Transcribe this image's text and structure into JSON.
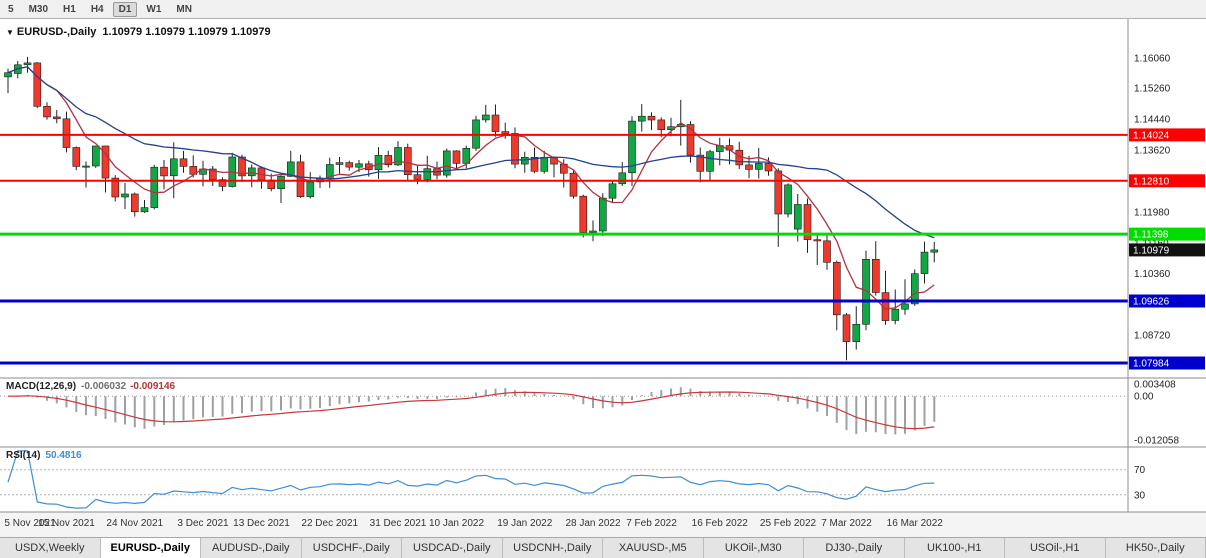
{
  "toolbar": {
    "timeframes": [
      "5",
      "M30",
      "H1",
      "H4",
      "D1",
      "W1",
      "MN"
    ],
    "active": "D1"
  },
  "chart": {
    "title": {
      "symbol": "EURUSD-,Daily",
      "quotes": "1.10979 1.10979 1.10979 1.10979"
    },
    "colors": {
      "up": "#0fa843",
      "down": "#ee3a2c",
      "wick": "#222222",
      "background": "#ffffff"
    }
  },
  "chart_data": {
    "type": "candlestick",
    "symbol": "EURUSD-",
    "timeframe": "Daily",
    "price_axis": {
      "max": 1.16854,
      "min": 1.07641,
      "ticks": [
        "1.16060",
        "1.15260",
        "1.14440",
        "1.13620",
        "1.11980",
        "1.11160",
        "1.10360",
        "1.08720"
      ]
    },
    "x_ticks": [
      {
        "label": "5 Nov 2021",
        "i": 0
      },
      {
        "label": "15 Nov 2021",
        "i": 6
      },
      {
        "label": "24 Nov 2021",
        "i": 13
      },
      {
        "label": "3 Dec 2021",
        "i": 20
      },
      {
        "label": "13 Dec 2021",
        "i": 26
      },
      {
        "label": "22 Dec 2021",
        "i": 33
      },
      {
        "label": "31 Dec 2021",
        "i": 40
      },
      {
        "label": "10 Jan 2022",
        "i": 46
      },
      {
        "label": "19 Jan 2022",
        "i": 53
      },
      {
        "label": "28 Jan 2022",
        "i": 60
      },
      {
        "label": "7 Feb 2022",
        "i": 66
      },
      {
        "label": "16 Feb 2022",
        "i": 73
      },
      {
        "label": "25 Feb 2022",
        "i": 80
      },
      {
        "label": "7 Mar 2022",
        "i": 86
      },
      {
        "label": "16 Mar 2022",
        "i": 93
      }
    ],
    "candles": [
      [
        1.1556,
        1.1578,
        1.1513,
        1.1567
      ],
      [
        1.1565,
        1.1598,
        1.1552,
        1.1588
      ],
      [
        1.1588,
        1.1609,
        1.1567,
        1.1593
      ],
      [
        1.1593,
        1.1595,
        1.1473,
        1.1478
      ],
      [
        1.1478,
        1.1489,
        1.1443,
        1.145
      ],
      [
        1.145,
        1.1468,
        1.1433,
        1.1445
      ],
      [
        1.1445,
        1.1464,
        1.1356,
        1.1369
      ],
      [
        1.1369,
        1.1372,
        1.1309,
        1.1319
      ],
      [
        1.1319,
        1.1332,
        1.1263,
        1.132
      ],
      [
        1.132,
        1.1374,
        1.1315,
        1.1373
      ],
      [
        1.1373,
        1.1374,
        1.125,
        1.1288
      ],
      [
        1.1288,
        1.1296,
        1.1226,
        1.1238
      ],
      [
        1.1238,
        1.1275,
        1.1206,
        1.1246
      ],
      [
        1.1246,
        1.125,
        1.1186,
        1.1199
      ],
      [
        1.1199,
        1.123,
        1.1196,
        1.121
      ],
      [
        1.121,
        1.1323,
        1.1205,
        1.1317
      ],
      [
        1.1317,
        1.1336,
        1.1258,
        1.1294
      ],
      [
        1.1294,
        1.1383,
        1.1235,
        1.1339
      ],
      [
        1.1339,
        1.136,
        1.1302,
        1.1319
      ],
      [
        1.1319,
        1.1348,
        1.129,
        1.1298
      ],
      [
        1.1298,
        1.1334,
        1.1266,
        1.1312
      ],
      [
        1.1312,
        1.132,
        1.1267,
        1.1284
      ],
      [
        1.1284,
        1.129,
        1.1253,
        1.1266
      ],
      [
        1.1266,
        1.1355,
        1.1263,
        1.1344
      ],
      [
        1.1344,
        1.135,
        1.1278,
        1.1294
      ],
      [
        1.1294,
        1.1324,
        1.1264,
        1.1315
      ],
      [
        1.1315,
        1.1319,
        1.126,
        1.1283
      ],
      [
        1.1283,
        1.13,
        1.1253,
        1.126
      ],
      [
        1.126,
        1.1296,
        1.1222,
        1.1293
      ],
      [
        1.1293,
        1.136,
        1.1291,
        1.1331
      ],
      [
        1.1331,
        1.135,
        1.1236,
        1.1239
      ],
      [
        1.1239,
        1.1304,
        1.1234,
        1.1278
      ],
      [
        1.1278,
        1.1295,
        1.1262,
        1.1287
      ],
      [
        1.1287,
        1.1342,
        1.1262,
        1.1324
      ],
      [
        1.1324,
        1.1344,
        1.13,
        1.1329
      ],
      [
        1.1329,
        1.1334,
        1.1308,
        1.1317
      ],
      [
        1.1317,
        1.1336,
        1.1304,
        1.1326
      ],
      [
        1.1326,
        1.1334,
        1.1292,
        1.131
      ],
      [
        1.131,
        1.137,
        1.1286,
        1.1348
      ],
      [
        1.1348,
        1.136,
        1.1316,
        1.1323
      ],
      [
        1.1323,
        1.1386,
        1.132,
        1.1369
      ],
      [
        1.1369,
        1.1379,
        1.1279,
        1.1297
      ],
      [
        1.1297,
        1.1323,
        1.1272,
        1.1285
      ],
      [
        1.1285,
        1.1347,
        1.1277,
        1.1313
      ],
      [
        1.1313,
        1.1332,
        1.1285,
        1.1296
      ],
      [
        1.1296,
        1.1366,
        1.1289,
        1.136
      ],
      [
        1.136,
        1.1362,
        1.1313,
        1.1327
      ],
      [
        1.1327,
        1.1374,
        1.1314,
        1.1367
      ],
      [
        1.1367,
        1.1453,
        1.136,
        1.1442
      ],
      [
        1.1442,
        1.1482,
        1.1435,
        1.1455
      ],
      [
        1.1455,
        1.1483,
        1.1398,
        1.1411
      ],
      [
        1.1411,
        1.1435,
        1.1392,
        1.1406
      ],
      [
        1.1406,
        1.1422,
        1.1314,
        1.1325
      ],
      [
        1.1325,
        1.1358,
        1.1302,
        1.1343
      ],
      [
        1.1343,
        1.1369,
        1.1301,
        1.1306
      ],
      [
        1.1306,
        1.136,
        1.13,
        1.1343
      ],
      [
        1.1343,
        1.1344,
        1.129,
        1.1325
      ],
      [
        1.1325,
        1.1338,
        1.1263,
        1.1301
      ],
      [
        1.1301,
        1.131,
        1.1234,
        1.124
      ],
      [
        1.124,
        1.1244,
        1.1131,
        1.1144
      ],
      [
        1.1144,
        1.1176,
        1.1121,
        1.1148
      ],
      [
        1.1148,
        1.1248,
        1.1135,
        1.1235
      ],
      [
        1.1235,
        1.128,
        1.1222,
        1.1273
      ],
      [
        1.1273,
        1.1331,
        1.1267,
        1.1302
      ],
      [
        1.1302,
        1.1452,
        1.1267,
        1.1439
      ],
      [
        1.1439,
        1.1484,
        1.1411,
        1.1452
      ],
      [
        1.1452,
        1.1462,
        1.1415,
        1.1442
      ],
      [
        1.1442,
        1.1449,
        1.1396,
        1.1416
      ],
      [
        1.1416,
        1.1448,
        1.1399,
        1.1424
      ],
      [
        1.1424,
        1.1495,
        1.1374,
        1.143
      ],
      [
        1.143,
        1.1439,
        1.1329,
        1.1349
      ],
      [
        1.1349,
        1.1369,
        1.1277,
        1.1306
      ],
      [
        1.1306,
        1.1363,
        1.128,
        1.1358
      ],
      [
        1.1358,
        1.1395,
        1.1322,
        1.1374
      ],
      [
        1.1374,
        1.1393,
        1.1324,
        1.1362
      ],
      [
        1.1362,
        1.1384,
        1.1312,
        1.1323
      ],
      [
        1.1323,
        1.1347,
        1.1288,
        1.1311
      ],
      [
        1.1311,
        1.1368,
        1.1287,
        1.1327
      ],
      [
        1.1327,
        1.1343,
        1.1294,
        1.1307
      ],
      [
        1.1307,
        1.1314,
        1.1106,
        1.1193
      ],
      [
        1.1193,
        1.1274,
        1.1184,
        1.127
      ],
      [
        1.1153,
        1.1246,
        1.112,
        1.1218
      ],
      [
        1.1218,
        1.1234,
        1.109,
        1.1125
      ],
      [
        1.1125,
        1.1139,
        1.1058,
        1.1122
      ],
      [
        1.1122,
        1.1143,
        1.1045,
        1.1065
      ],
      [
        1.1065,
        1.107,
        1.0885,
        1.0926
      ],
      [
        1.0926,
        1.0931,
        1.0806,
        1.0855
      ],
      [
        1.0855,
        1.0949,
        1.0834,
        1.0901
      ],
      [
        1.0901,
        1.1096,
        1.0885,
        1.1073
      ],
      [
        1.1073,
        1.1121,
        1.0977,
        1.0985
      ],
      [
        1.0985,
        1.1043,
        1.09,
        1.0911
      ],
      [
        1.0911,
        1.0993,
        1.0901,
        1.0941
      ],
      [
        1.0941,
        1.102,
        1.0926,
        1.0955
      ],
      [
        1.0955,
        1.1046,
        1.095,
        1.1035
      ],
      [
        1.1035,
        1.112,
        1.1009,
        1.1092
      ],
      [
        1.1092,
        1.1119,
        1.1065,
        1.1098
      ]
    ],
    "hlines": [
      {
        "price": 1.14024,
        "label": "1.14024",
        "color": "#ff0000",
        "width": 2
      },
      {
        "price": 1.1281,
        "label": "1.12810",
        "color": "#ff0000",
        "width": 2
      },
      {
        "price": 1.11398,
        "label": "1.11398",
        "color": "#00dd00",
        "width": 3
      },
      {
        "price": 1.09626,
        "label": "1.09626",
        "color": "#0000cc",
        "width": 3
      },
      {
        "price": 1.07984,
        "label": "1.07984",
        "color": "#0000cc",
        "width": 3
      }
    ],
    "current_price": {
      "price": 1.10979,
      "label": "1.10979",
      "bg": "#111111"
    },
    "moving_averages": [
      {
        "period": 6,
        "color": "#b03342"
      },
      {
        "period": 24,
        "color": "#24418c"
      }
    ],
    "macd": {
      "label": "MACD(12,26,9)",
      "value_main": "-0.006032",
      "value_signal": "-0.009146",
      "fast": 12,
      "slow": 26,
      "signal": 9,
      "hist_color": "#a0a0a0",
      "signal_color": "#c8373c",
      "axis": [
        {
          "label": "0.003408",
          "v": 0.003408
        },
        {
          "label": "0.00",
          "v": 0
        },
        {
          "label": "-0.012058",
          "v": -0.012058
        }
      ]
    },
    "rsi": {
      "label": "RSI(14)",
      "value": "50.4816",
      "period": 14,
      "color": "#3f8ed0",
      "levels": [
        {
          "label": "70",
          "v": 70
        },
        {
          "label": "30",
          "v": 30
        }
      ]
    }
  },
  "tabs": {
    "active": "EURUSD-,Daily",
    "labels": [
      "USDX,Weekly",
      "EURUSD-,Daily",
      "AUDUSD-,Daily",
      "USDCHF-,Daily",
      "USDCAD-,Daily",
      "USDCNH-,Daily",
      "XAUUSD-,M5",
      "UKOil-,M30",
      "DJ30-,Daily",
      "UK100-,H1",
      "USOil-,H1",
      "HK50-,Daily"
    ]
  }
}
